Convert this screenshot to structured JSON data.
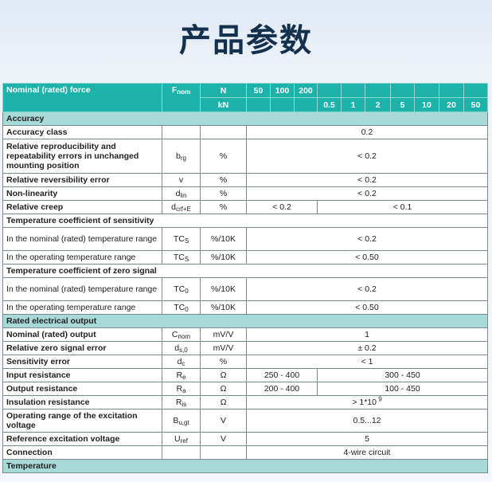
{
  "title": "产品参数",
  "header": {
    "label": "Nominal (rated) force",
    "symbol": {
      "base": "F",
      "sub": "nom"
    },
    "unit_n": "N",
    "unit_kn": "kN",
    "n_values": [
      "50",
      "100",
      "200"
    ],
    "kn_values": [
      "0.5",
      "1",
      "2",
      "5",
      "10",
      "20",
      "50"
    ]
  },
  "rows": [
    {
      "type": "section",
      "label": "Accuracy"
    },
    {
      "type": "row",
      "label": "Accuracy class",
      "bold": true,
      "symbol": null,
      "unit": "",
      "values": [
        "0.2"
      ]
    },
    {
      "type": "row",
      "label": "Relative reproducibility and repeatability errors in unchanged mounting position",
      "bold": true,
      "symbol": {
        "base": "b",
        "sub": "rg"
      },
      "unit": "%",
      "values": [
        "< 0.2"
      ],
      "tall": 3
    },
    {
      "type": "row",
      "label": "Relative reversibility error",
      "bold": true,
      "symbol": {
        "base": "v",
        "sub": ""
      },
      "unit": "%",
      "values": [
        "< 0.2"
      ]
    },
    {
      "type": "row",
      "label": "Non-linearity",
      "bold": true,
      "symbol": {
        "base": "d",
        "sub": "lin"
      },
      "unit": "%",
      "values": [
        "< 0.2"
      ]
    },
    {
      "type": "row",
      "label": "Relative creep",
      "bold": true,
      "symbol": {
        "base": "d",
        "sub": "crf+E"
      },
      "unit": "%",
      "values": [
        "< 0.2",
        "< 0.1"
      ]
    },
    {
      "type": "subsection",
      "label": "Temperature coefficient of sensitivity"
    },
    {
      "type": "row",
      "label": "In the nominal (rated) temperature range",
      "bold": false,
      "symbol": {
        "base": "TC",
        "sub": "S"
      },
      "unit": "%/10K",
      "values": [
        "< 0.2"
      ],
      "tall": 2
    },
    {
      "type": "row",
      "label": "In the operating temperature range",
      "bold": false,
      "symbol": {
        "base": "TC",
        "sub": "S"
      },
      "unit": "%/10K",
      "values": [
        "< 0.50"
      ]
    },
    {
      "type": "subsection",
      "label": "Temperature coefficient of zero signal"
    },
    {
      "type": "row",
      "label": "In the nominal (rated) temperature range",
      "bold": false,
      "symbol": {
        "base": "TC",
        "sub": "0"
      },
      "unit": "%/10K",
      "values": [
        "< 0.2"
      ],
      "tall": 2
    },
    {
      "type": "row",
      "label": "In the operating temperature range",
      "bold": false,
      "symbol": {
        "base": "TC",
        "sub": "0"
      },
      "unit": "%/10K",
      "values": [
        "< 0.50"
      ]
    },
    {
      "type": "section",
      "label": "Rated electrical output"
    },
    {
      "type": "row",
      "label": "Nominal (rated) output",
      "bold": true,
      "symbol": {
        "base": "C",
        "sub": "nom"
      },
      "unit": "mV/V",
      "values": [
        "1"
      ]
    },
    {
      "type": "row",
      "label": "Relative zero signal error",
      "bold": true,
      "symbol": {
        "base": "d",
        "sub": "s,0"
      },
      "unit": "mV/V",
      "values": [
        "± 0.2"
      ]
    },
    {
      "type": "row",
      "label": "Sensitivity error",
      "bold": true,
      "symbol": {
        "base": "d",
        "sub": "c"
      },
      "unit": "%",
      "values": [
        "< 1"
      ]
    },
    {
      "type": "row",
      "label": "Input resistance",
      "bold": true,
      "symbol": {
        "base": "R",
        "sub": "e"
      },
      "unit": "Ω",
      "values": [
        "250 - 400",
        "300 - 450"
      ]
    },
    {
      "type": "row",
      "label": "Output resistance",
      "bold": true,
      "symbol": {
        "base": "R",
        "sub": "a"
      },
      "unit": "Ω",
      "values": [
        "200 - 400",
        "100 - 450"
      ]
    },
    {
      "type": "row",
      "label": "Insulation resistance",
      "bold": true,
      "symbol": {
        "base": "R",
        "sub": "is"
      },
      "unit": "Ω",
      "values": [
        "> 1*10"
      ],
      "sup": "9"
    },
    {
      "type": "row",
      "label": "Operating range of the excitation voltage",
      "bold": true,
      "symbol": {
        "base": "B",
        "sub": "u,gt"
      },
      "unit": "V",
      "values": [
        "0.5...12"
      ],
      "tall": 2
    },
    {
      "type": "row",
      "label": "Reference excitation voltage",
      "bold": true,
      "symbol": {
        "base": "U",
        "sub": "ref"
      },
      "unit": "V",
      "values": [
        "5"
      ]
    },
    {
      "type": "row",
      "label": "Connection",
      "bold": true,
      "symbol": null,
      "unit": "",
      "values": [
        "4-wire circuit"
      ]
    },
    {
      "type": "section",
      "label": "Temperature"
    }
  ],
  "colors": {
    "header": "#1db3ab",
    "section": "#a7d9d6",
    "title": "#14304f"
  }
}
